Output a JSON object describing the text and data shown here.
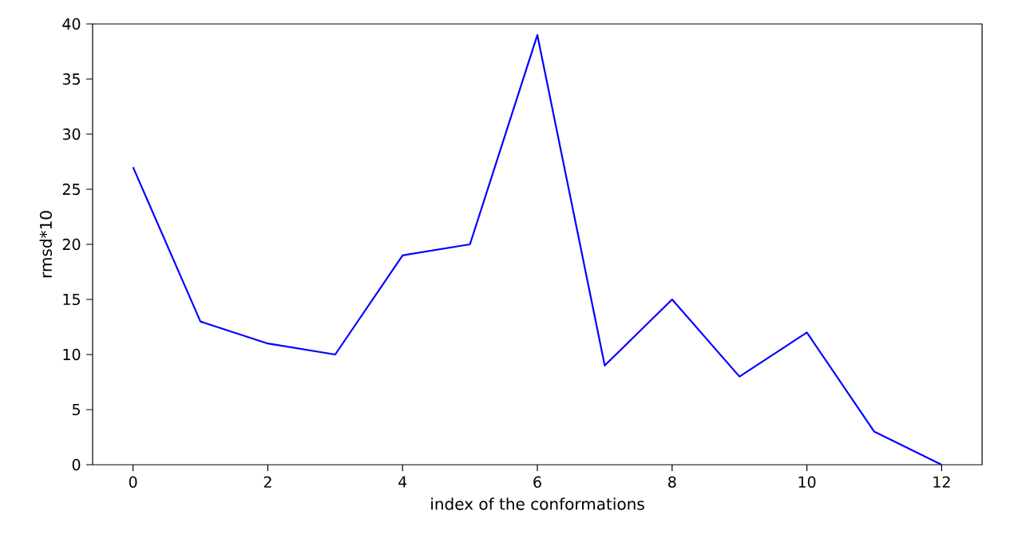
{
  "chart_data": {
    "type": "line",
    "xlabel": "index of the conformations",
    "ylabel": "rmsd*10",
    "x": [
      0,
      1,
      2,
      3,
      4,
      5,
      6,
      7,
      8,
      9,
      10,
      11,
      12
    ],
    "series": [
      {
        "color": "#0000ff",
        "values": [
          27,
          13,
          11,
          10,
          19,
          20,
          39,
          9,
          15,
          8,
          12,
          3,
          0
        ]
      }
    ],
    "xlim": [
      -0.6,
      12.6
    ],
    "ylim": [
      0,
      40
    ],
    "xticks": [
      0,
      2,
      4,
      6,
      8,
      10,
      12
    ],
    "yticks": [
      0,
      5,
      10,
      15,
      20,
      25,
      30,
      35,
      40
    ],
    "marker": "none",
    "line_style": "solid",
    "grid": false
  }
}
